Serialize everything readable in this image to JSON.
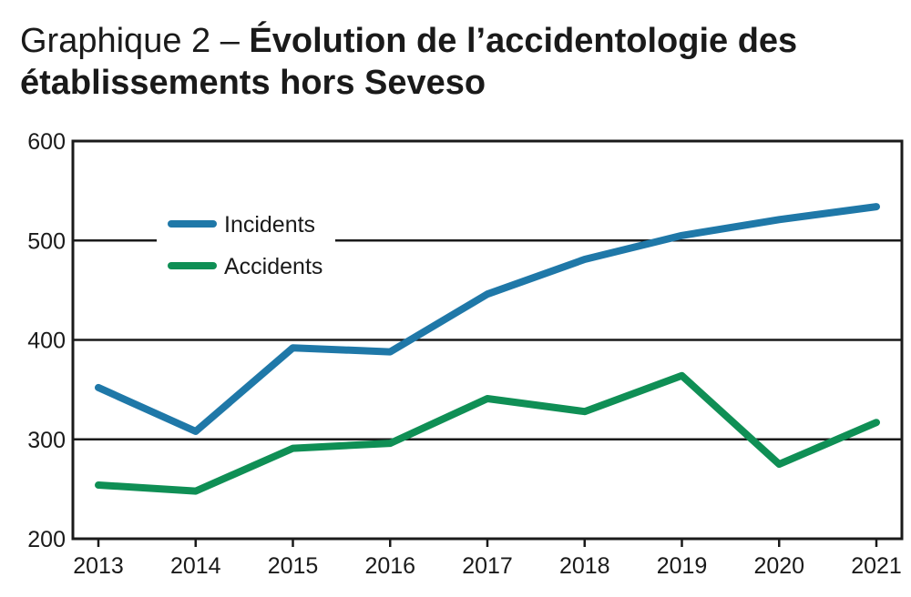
{
  "title": {
    "prefix": "Graphique 2 – ",
    "main": "Évolution de l’accidentologie des établissements hors Seveso"
  },
  "chart_data": {
    "type": "line",
    "title": "Graphique 2 – Évolution de l’accidentologie des établissements hors Seveso",
    "xlabel": "",
    "ylabel": "",
    "categories": [
      "2013",
      "2014",
      "2015",
      "2016",
      "2017",
      "2018",
      "2019",
      "2020",
      "2021"
    ],
    "ylim": [
      200,
      600
    ],
    "yticks": [
      200,
      300,
      400,
      500,
      600
    ],
    "grid": "horizontal",
    "legend_position": "top-left",
    "series": [
      {
        "name": "Incidents",
        "color": "#1f78a8",
        "values": [
          352,
          308,
          392,
          388,
          446,
          481,
          505,
          521,
          534
        ]
      },
      {
        "name": "Accidents",
        "color": "#0f8f55",
        "values": [
          254,
          248,
          291,
          296,
          341,
          328,
          364,
          275,
          317
        ]
      }
    ]
  }
}
